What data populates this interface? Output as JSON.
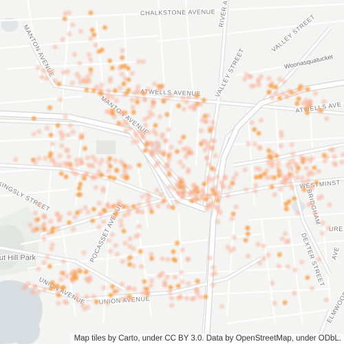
{
  "map": {
    "attribution": "Map tiles by Carto, under CC BY 3.0. Data by OpenStreetMap, under ODbL.",
    "colors": {
      "background": "#f4f4f2",
      "road": "#ffffff",
      "road_casing": "#dedede",
      "highway": "#ffffff",
      "water": "#d8dde2",
      "park": "#e6e9e4",
      "building": "#ececea",
      "point_light": "#f7b59a",
      "point_strong": "#f7a24a"
    },
    "labels": {
      "chalkstone": "CHALKSTONE AVENUE",
      "river": "RIVER AVENUE",
      "valley_top": "VALLEY STREET",
      "valley_mid": "VALLEY STREET",
      "manton_top": "MANTON AVENUE",
      "manton_mid": "MANTON AVENUE",
      "woonasquatucket": "Woonasquatucket",
      "atwells_left": "ATWELLS AVENUE",
      "atwells_right": "ATWELLS AVE",
      "westminster": "WESTMINST",
      "bridgham": "BRIDGHAM",
      "dexter": "DEXTER STREET",
      "kingsly": "KINGSLY STREET",
      "pocasset": "POCASSET AVENUE",
      "neutaconkanut": "Neutaconkanut Hill Park",
      "union_left": "UNION AVENUE",
      "union_mid": "UNION AVENUE",
      "elmwood": "ELMWOOD AVENUE",
      "ure": "URE",
      "ave": "AVE"
    }
  }
}
